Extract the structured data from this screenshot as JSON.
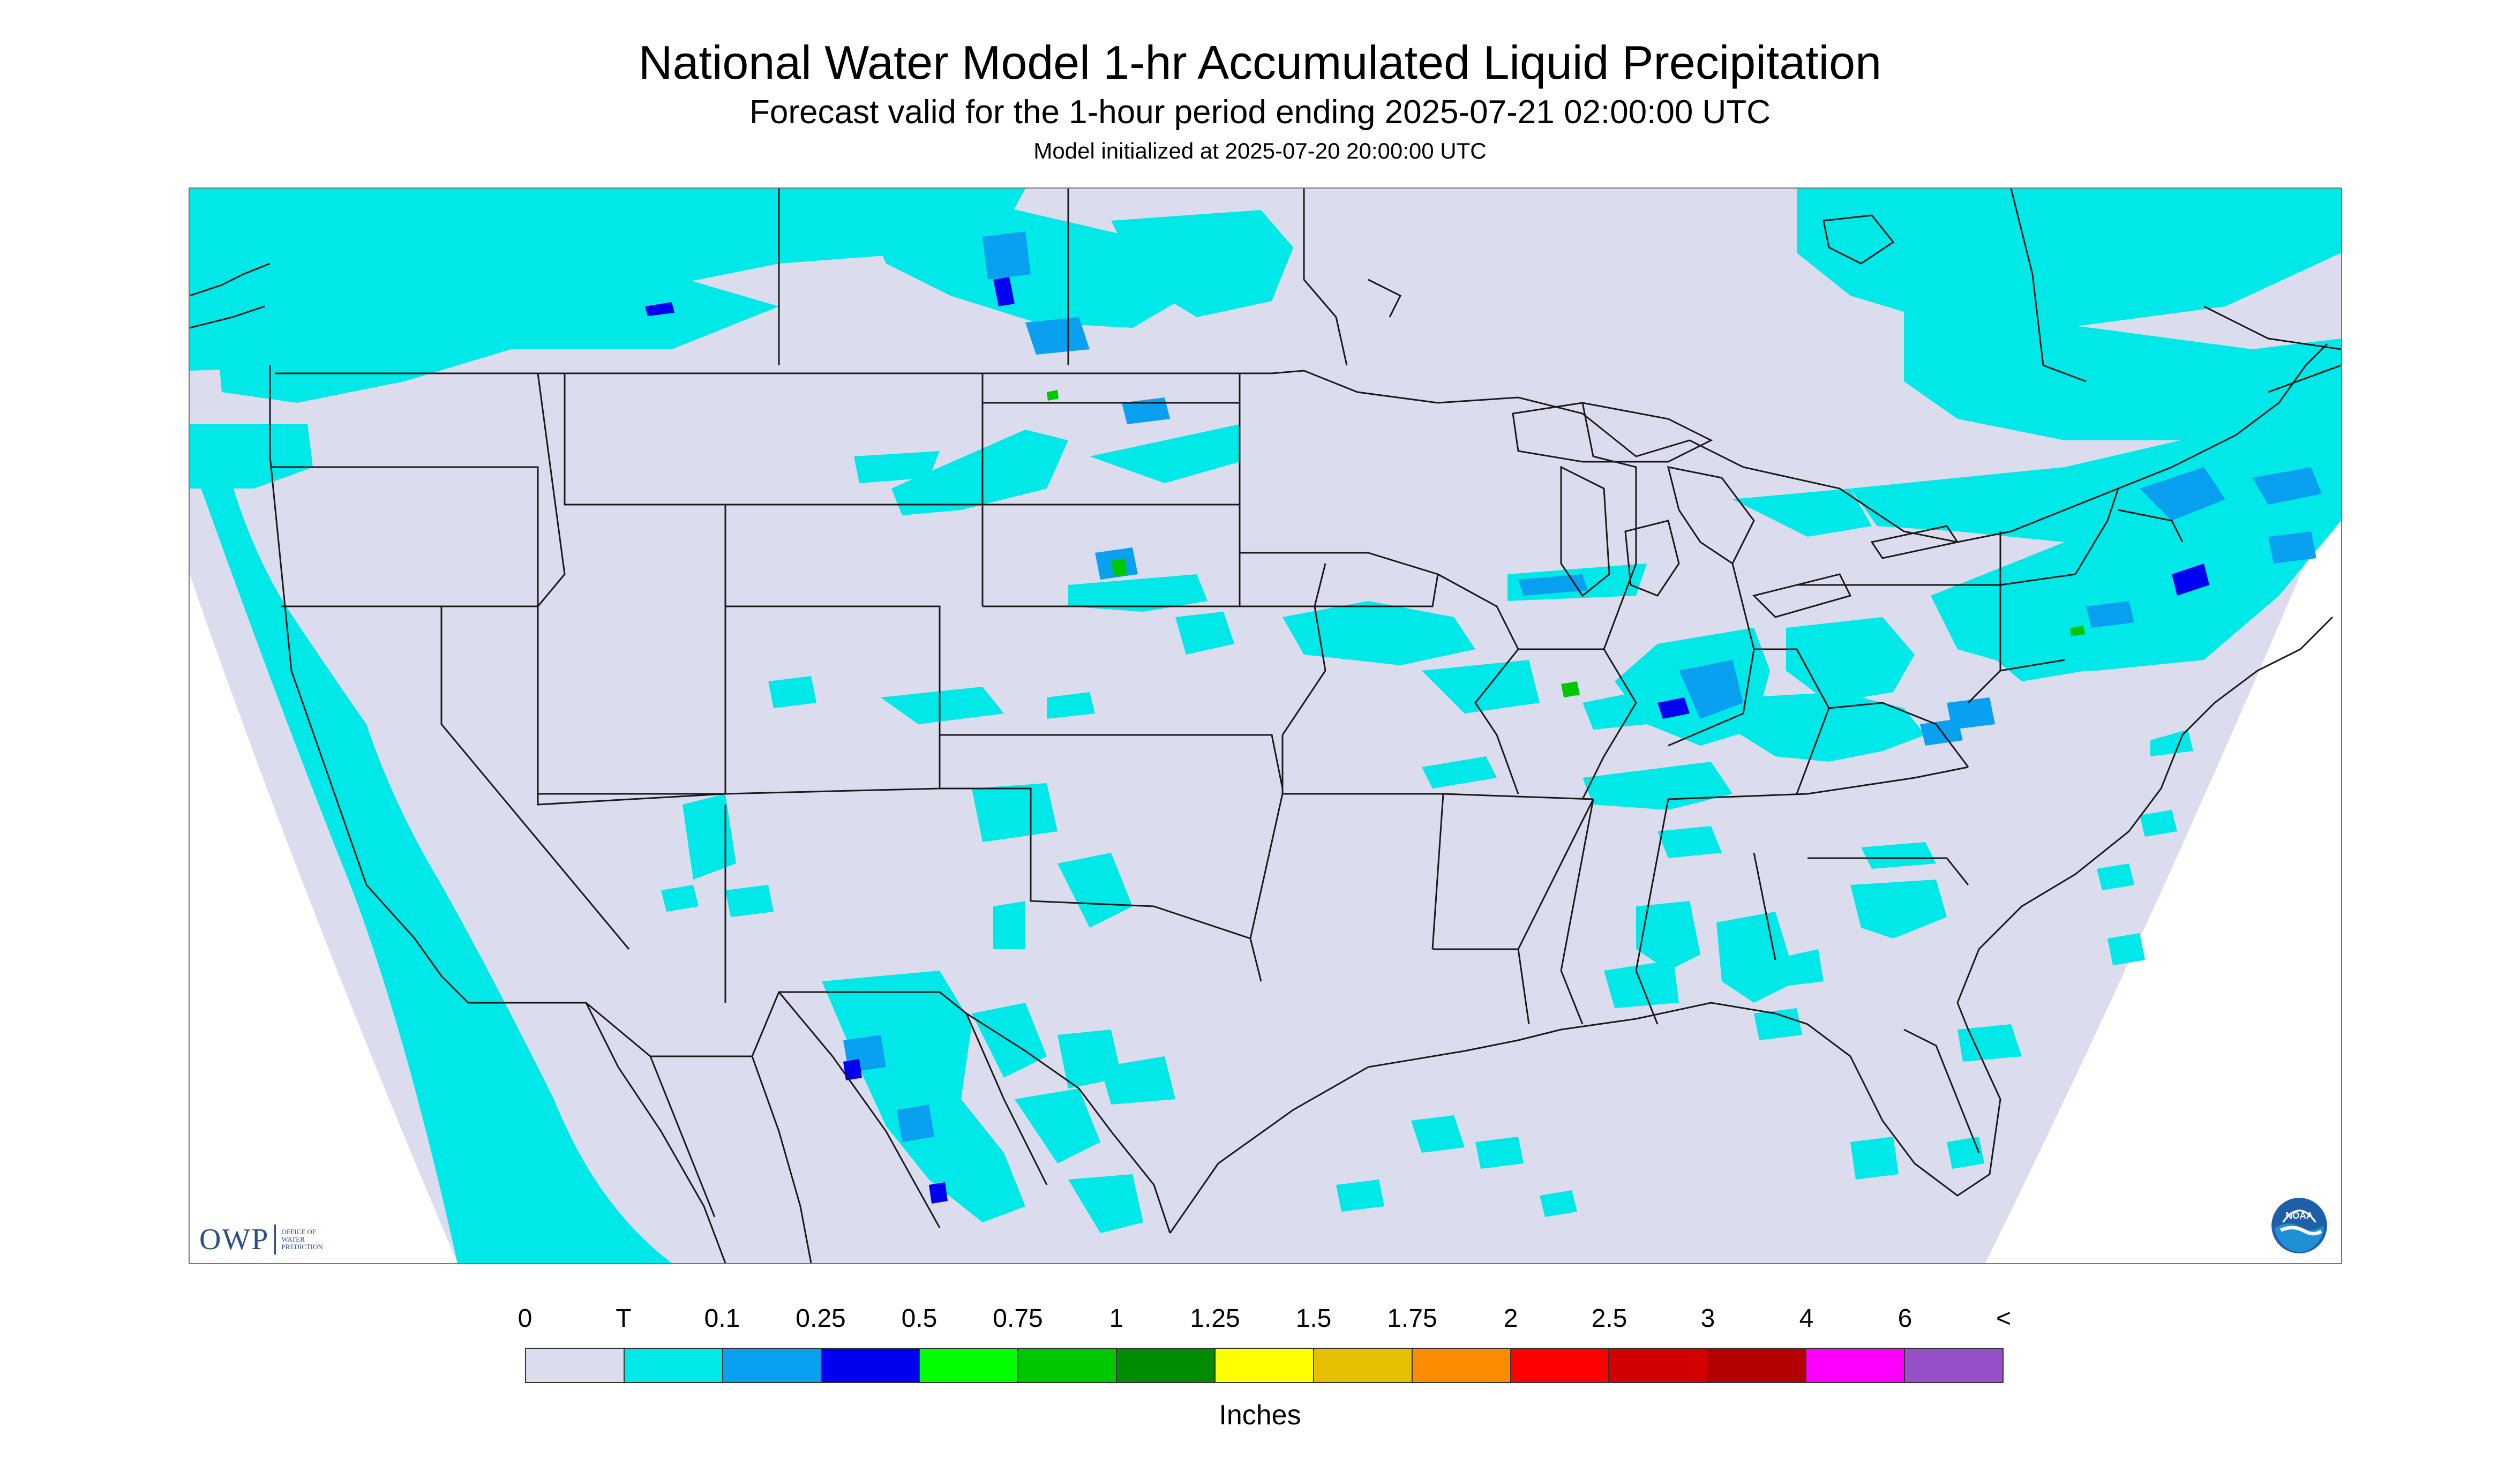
{
  "header": {
    "title": "National Water Model 1-hr Accumulated Liquid Precipitation",
    "subtitle": "Forecast valid for the 1-hour period ending 2025-07-21 02:00:00 UTC",
    "init_note": "Model initialized at 2025-07-20 20:00:00 UTC"
  },
  "map": {
    "background_color": "#dcdcef",
    "outside_domain_color": "#ffffff",
    "boundary_color": "#1a1a1a",
    "logos": {
      "owp": {
        "name": "OWP",
        "sublabel": "OFFICE OF\nWATER\nPREDICTION",
        "color": "#2c4f86"
      },
      "noaa": {
        "name": "NOAA",
        "icon": "noaa-logo-icon"
      }
    }
  },
  "legend": {
    "labels": [
      "0",
      "T",
      "0.1",
      "0.25",
      "0.5",
      "0.75",
      "1",
      "1.25",
      "1.5",
      "1.75",
      "2",
      "2.5",
      "3",
      "4",
      "6",
      "<"
    ],
    "colors": [
      "#dcdcef",
      "#00e8e8",
      "#0aa0f0",
      "#0000f0",
      "#00ff00",
      "#00c800",
      "#008c00",
      "#ffff00",
      "#e6c000",
      "#ff8c00",
      "#ff0000",
      "#d20000",
      "#b40000",
      "#ff00ff",
      "#9650c8"
    ],
    "units": "Inches"
  }
}
